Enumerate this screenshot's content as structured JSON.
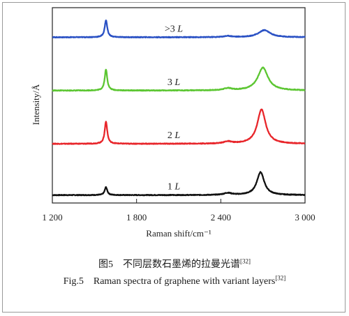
{
  "chart_data": {
    "type": "line",
    "xlabel": "Raman shift/cm⁻¹",
    "ylabel": "Intensity/Å",
    "xlim": [
      1200,
      3000
    ],
    "xticks": [
      1200,
      1800,
      2400,
      3000
    ],
    "xtick_labels": [
      "1 200",
      "1 800",
      "2 400",
      "3 000"
    ],
    "y_ticks": "none",
    "series": [
      {
        "name": "1 L",
        "color": "#111111",
        "baseline": 0.0,
        "peaks": [
          {
            "x": 1582,
            "h": 0.2,
            "w": 11
          },
          {
            "x": 2450,
            "h": 0.05,
            "w": 35
          },
          {
            "x": 2683,
            "h": 0.58,
            "w": 32
          }
        ]
      },
      {
        "name": "2 L",
        "color": "#e8262b",
        "baseline": 1.3,
        "peaks": [
          {
            "x": 1582,
            "h": 0.56,
            "w": 11
          },
          {
            "x": 2450,
            "h": 0.05,
            "w": 35
          },
          {
            "x": 2690,
            "h": 0.87,
            "w": 36
          }
        ]
      },
      {
        "name": "3 L",
        "color": "#5cc632",
        "baseline": 2.65,
        "peaks": [
          {
            "x": 1582,
            "h": 0.53,
            "w": 11
          },
          {
            "x": 2450,
            "h": 0.05,
            "w": 35
          },
          {
            "x": 2700,
            "h": 0.58,
            "w": 44
          }
        ]
      },
      {
        "name": ">3 L",
        "color": "#2a51c4",
        "baseline": 4.0,
        "peaks": [
          {
            "x": 1582,
            "h": 0.43,
            "w": 11
          },
          {
            "x": 2450,
            "h": 0.03,
            "w": 35
          },
          {
            "x": 2710,
            "h": 0.18,
            "w": 50
          }
        ]
      }
    ],
    "ylim": [
      -0.2,
      4.75
    ]
  },
  "caption": {
    "cn": "图5　不同层数石墨烯的拉曼光谱",
    "en": "Fig.5　Raman spectra of graphene with variant layers",
    "ref": "[32]"
  }
}
